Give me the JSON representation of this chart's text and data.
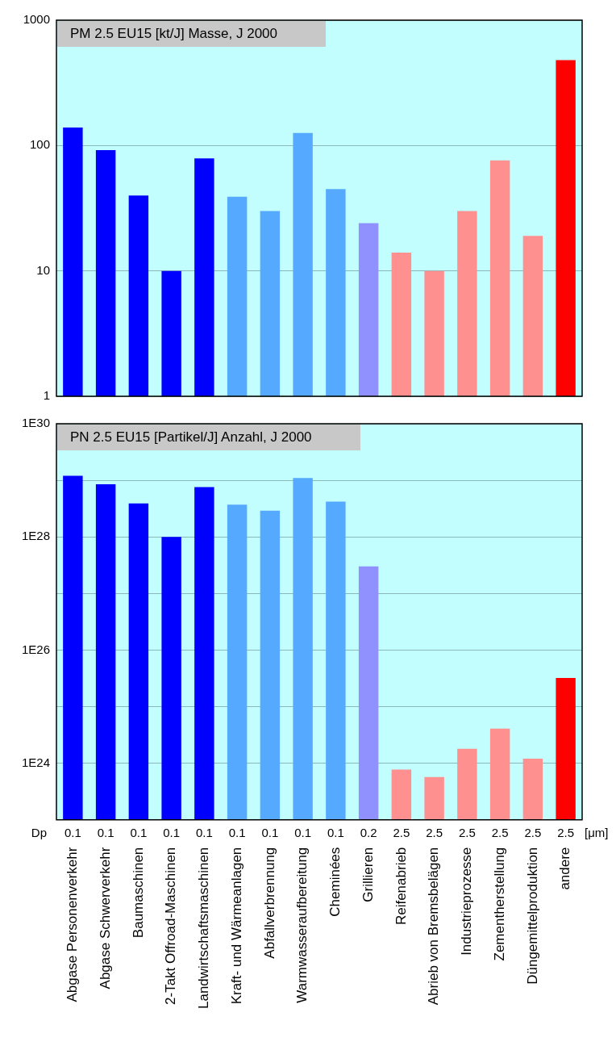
{
  "chart_data": [
    {
      "type": "bar",
      "title": "PM 2.5 EU15 [kt/J]  Masse, J 2000",
      "values": [
        139,
        92,
        40,
        10,
        79,
        39,
        30,
        126,
        45,
        24,
        14,
        10,
        30,
        76,
        19,
        480
      ],
      "colors": [
        "#0000ff",
        "#0000ff",
        "#0000ff",
        "#0000ff",
        "#0000ff",
        "#55aaff",
        "#55aaff",
        "#55aaff",
        "#55aaff",
        "#9090ff",
        "#ff9090",
        "#ff9090",
        "#ff9090",
        "#ff9090",
        "#ff9090",
        "#ff0000"
      ],
      "log": true,
      "ylim": [
        1,
        1000
      ],
      "yticks": [
        1,
        10,
        100,
        1000
      ],
      "grid": "y",
      "tick_labels": "y"
    },
    {
      "type": "bar",
      "title": "PN 2.5 EU15 [Partikel/J]  Anzahl, J 2000",
      "categories": [
        "Abgase Personenverkehr",
        "Abgase Schwerverkehr",
        "Baumaschinen",
        "2-Takt Offroad-Maschinen",
        "Landwirtschaftsmaschinen",
        "Kraft- und Wärmeanlagen",
        "Abfallverbrennung",
        "Warmwasseraufbereitung",
        "Cheminées",
        "Grillieren",
        "Reifenabrieb",
        "Abrieb von Bremsbelägen",
        "Industrieprozesse",
        "Zementherstellung",
        "Düngemittelproduktion",
        "andere"
      ],
      "values": [
        1.2e+29,
        8.5e+28,
        3.9e+28,
        1e+28,
        7.6e+28,
        3.7e+28,
        2.9e+28,
        1.1e+29,
        4.2e+28,
        3e+27,
        7.7e+23,
        5.7e+23,
        1.8e+24,
        4.1e+24,
        1.2e+24,
        3.2e+25
      ],
      "colors": [
        "#0000ff",
        "#0000ff",
        "#0000ff",
        "#0000ff",
        "#0000ff",
        "#55aaff",
        "#55aaff",
        "#55aaff",
        "#55aaff",
        "#9090ff",
        "#ff9090",
        "#ff9090",
        "#ff9090",
        "#ff9090",
        "#ff9090",
        "#ff0000"
      ],
      "log": true,
      "ylim": [
        1e+23,
        1e+30
      ],
      "yticks": [
        {
          "value": 1e+30,
          "label": "1E30"
        },
        {
          "value": 1e+29,
          "label": null
        },
        {
          "value": 1e+28,
          "label": "1E28"
        },
        {
          "value": 1e+27,
          "label": null
        },
        {
          "value": 1e+26,
          "label": "1E26"
        },
        {
          "value": 1e+25,
          "label": null
        },
        {
          "value": 1e+24,
          "label": "1E24"
        }
      ],
      "grid": "y",
      "annotations": [
        "Dp",
        "0.1",
        "0.1",
        "0.1",
        "0.1",
        "0.1",
        "0.1",
        "0.1",
        "0.1",
        "0.1",
        "0.2",
        "2.5",
        "2.5",
        "2.5",
        "2.5",
        "2.5",
        "2.5",
        "[μm]"
      ]
    }
  ]
}
